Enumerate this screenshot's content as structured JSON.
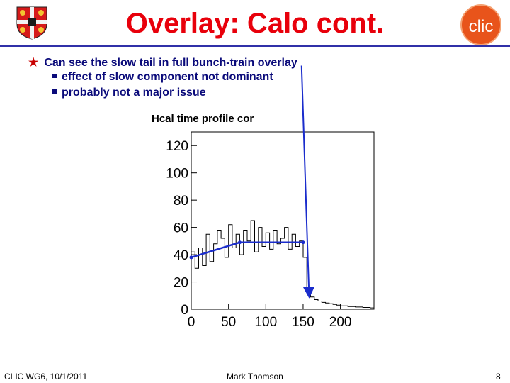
{
  "slide": {
    "title": "Overlay: Calo cont.",
    "bullets": [
      {
        "text": "Can see the slow tail in full bunch-train overlay",
        "sub": [
          "effect of slow component not dominant",
          "probably not a major issue"
        ]
      }
    ]
  },
  "chart_data": {
    "type": "line",
    "title": "Hcal time profile cor",
    "xlabel": "",
    "ylabel": "",
    "xlim": [
      0,
      245
    ],
    "ylim": [
      0,
      130
    ],
    "xticks": [
      0,
      50,
      100,
      150,
      200
    ],
    "yticks": [
      0,
      20,
      40,
      60,
      80,
      100,
      120
    ],
    "grid": false,
    "x": [
      0,
      5,
      10,
      15,
      20,
      25,
      30,
      35,
      40,
      45,
      50,
      55,
      60,
      65,
      70,
      75,
      80,
      85,
      90,
      95,
      100,
      105,
      110,
      115,
      120,
      125,
      130,
      135,
      140,
      145,
      150,
      155,
      160,
      165,
      170,
      175,
      180,
      185,
      190,
      195,
      200,
      210,
      220,
      230,
      240
    ],
    "y": [
      42,
      30,
      45,
      32,
      55,
      35,
      48,
      58,
      52,
      38,
      62,
      45,
      55,
      40,
      58,
      50,
      65,
      42,
      60,
      46,
      56,
      44,
      58,
      48,
      52,
      60,
      44,
      55,
      46,
      50,
      38,
      12,
      9,
      7,
      6,
      5,
      4.5,
      4,
      3.5,
      3,
      2.5,
      2,
      1.6,
      1.3,
      1
    ],
    "series": [
      {
        "points": [
          [
            0,
            38
          ],
          [
            65,
            49
          ],
          [
            150,
            49
          ]
        ]
      }
    ],
    "annotations": [
      {
        "type": "arrow",
        "from": "bullet-text",
        "to": [
          158,
          10
        ],
        "color": "#1a2ccc"
      }
    ]
  },
  "footer": {
    "left": "CLIC WG6, 10/1/2011",
    "center": "Mark Thomson",
    "right": "8"
  },
  "colors": {
    "title": "#e8000b",
    "text": "#0a0a7a",
    "accent_line": "#1a2ccc",
    "logo": "#e8541b"
  },
  "icons": {
    "left": "university-crest-icon",
    "right": "clic-logo-icon"
  }
}
